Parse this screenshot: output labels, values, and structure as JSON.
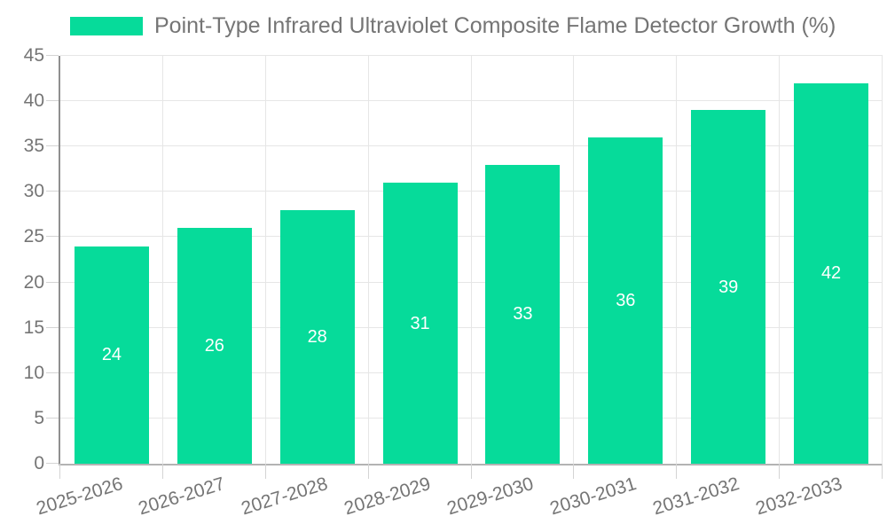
{
  "legend": {
    "label": "Point-Type Infrared Ultraviolet Composite Flame Detector Growth (%)"
  },
  "colors": {
    "bar": "#06DB9A",
    "bar_label": "#ffffff",
    "axis_text": "#757575",
    "legend_text": "#757575",
    "gridline": "#e6e6e6",
    "tick": "#d4d4d4",
    "y_axis_line": "#8f8f8f",
    "x_axis_line": "#b3b3b3",
    "background": "#ffffff"
  },
  "chart_data": {
    "type": "bar",
    "title": "Point-Type Infrared Ultraviolet Composite Flame Detector Growth (%)",
    "categories": [
      "2025-2026",
      "2026-2027",
      "2027-2028",
      "2028-2029",
      "2029-2030",
      "2030-2031",
      "2031-2032",
      "2032-2033"
    ],
    "series": [
      {
        "name": "Point-Type Infrared Ultraviolet Composite Flame Detector Growth (%)",
        "values": [
          24,
          26,
          28,
          31,
          33,
          36,
          39,
          42
        ]
      }
    ],
    "xlabel": "",
    "ylabel": "",
    "ylim": [
      0,
      45
    ],
    "yticks": [
      0,
      5,
      10,
      15,
      20,
      25,
      30,
      35,
      40,
      45
    ],
    "bar_value_labels": "inside-center-white",
    "grid": "horizontal-and-vertical",
    "legend_position": "top-left",
    "x_label_rotation_deg": -17
  }
}
